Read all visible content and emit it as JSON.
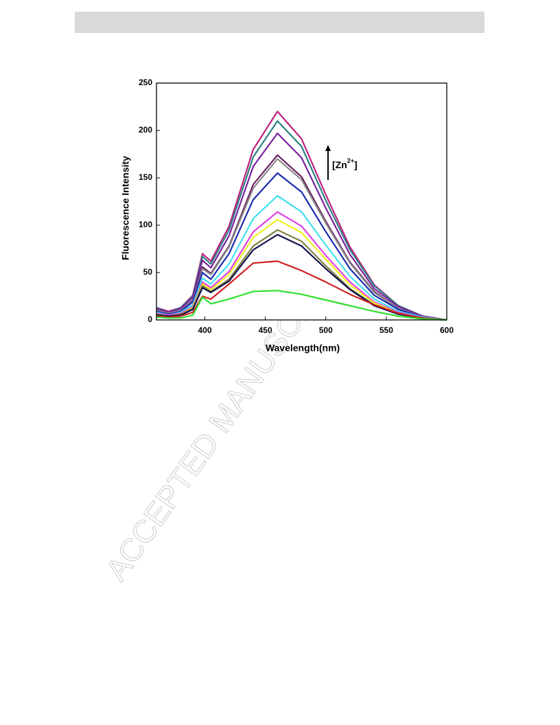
{
  "watermark": "ACCEPTED MANUSCRIPT",
  "chart_data": {
    "type": "line",
    "xlabel": "Wavelength(nm)",
    "ylabel": "Fluorescence Intensity",
    "annotation": {
      "text": "[Zn",
      "sup": "2+",
      "close": "]"
    },
    "x": [
      360,
      370,
      380,
      390,
      398,
      405,
      420,
      440,
      460,
      480,
      500,
      520,
      540,
      560,
      580,
      600
    ],
    "xlim": [
      360,
      600
    ],
    "xticks": [
      400,
      450,
      500,
      550,
      600
    ],
    "ylim": [
      0,
      250
    ],
    "yticks": [
      0,
      50,
      100,
      150,
      200,
      250
    ],
    "series": [
      {
        "color": "#c0207f",
        "values": [
          13,
          9,
          13,
          26,
          70,
          62,
          99,
          180,
          220,
          191,
          132,
          77,
          37,
          15,
          4,
          0
        ]
      },
      {
        "color": "#2a8080",
        "values": [
          13,
          8,
          13,
          25,
          67,
          59,
          95,
          172,
          210,
          183,
          126,
          74,
          36,
          15,
          4,
          0
        ]
      },
      {
        "color": "#7a1fa0",
        "values": [
          12,
          8,
          12,
          24,
          63,
          55,
          89,
          162,
          197,
          171,
          118,
          69,
          33,
          14,
          4,
          0
        ]
      },
      {
        "color": "#6b2060",
        "values": [
          10,
          7,
          10,
          21,
          56,
          49,
          78,
          143,
          174,
          151,
          104,
          61,
          30,
          12,
          3,
          0
        ]
      },
      {
        "color": "#888888",
        "values": [
          10,
          7,
          10,
          20,
          54,
          48,
          77,
          139,
          170,
          148,
          102,
          60,
          29,
          12,
          3,
          0
        ]
      },
      {
        "color": "#1a2ab0",
        "values": [
          9,
          6,
          9,
          19,
          50,
          43,
          70,
          127,
          155,
          135,
          93,
          54,
          26,
          11,
          3,
          0
        ]
      },
      {
        "color": "#40e0f0",
        "values": [
          8,
          5,
          8,
          16,
          44,
          38,
          59,
          107,
          131,
          114,
          79,
          46,
          22,
          9,
          3,
          0
        ]
      },
      {
        "color": "#e040e0",
        "values": [
          7,
          5,
          7,
          14,
          40,
          34,
          51,
          93,
          114,
          99,
          68,
          40,
          19,
          8,
          2,
          0
        ]
      },
      {
        "color": "#f0f020",
        "values": [
          6,
          4,
          6,
          13,
          38,
          32,
          48,
          87,
          106,
          92,
          64,
          37,
          18,
          7,
          2,
          0
        ]
      },
      {
        "color": "#808040",
        "values": [
          6,
          4,
          6,
          12,
          36,
          30,
          43,
          78,
          95,
          83,
          57,
          33,
          16,
          7,
          2,
          0
        ]
      },
      {
        "color": "#101050",
        "values": [
          5,
          4,
          5,
          11,
          34,
          29,
          41,
          74,
          90,
          78,
          54,
          32,
          15,
          6,
          2,
          0
        ]
      },
      {
        "color": "#d02020",
        "values": [
          4,
          3,
          4,
          8,
          25,
          22,
          38,
          60,
          62,
          52,
          40,
          27,
          16,
          7,
          2,
          0
        ]
      },
      {
        "color": "#30e030",
        "values": [
          3,
          2,
          2,
          5,
          24,
          17,
          22,
          30,
          31,
          27,
          21,
          15,
          9,
          4,
          1,
          0
        ]
      }
    ]
  }
}
